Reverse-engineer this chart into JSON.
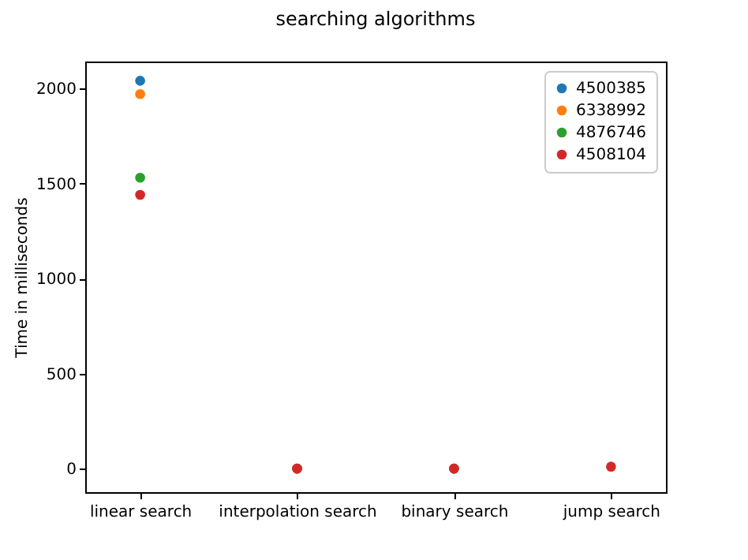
{
  "chart_data": {
    "type": "scatter",
    "title": "searching algorithms",
    "ylabel": "Time in milliseconds",
    "categories": [
      "linear search",
      "interpolation search",
      "binary search",
      "jump search"
    ],
    "series": [
      {
        "name": "4500385",
        "color": "#1f77b4",
        "values": [
          2040,
          0,
          0,
          null
        ]
      },
      {
        "name": "6338992",
        "color": "#ff7f0e",
        "values": [
          1970,
          0,
          0,
          null
        ]
      },
      {
        "name": "4876746",
        "color": "#2ca02c",
        "values": [
          1530,
          0,
          0,
          null
        ]
      },
      {
        "name": "4508104",
        "color": "#d62728",
        "values": [
          1440,
          0,
          0,
          10
        ]
      }
    ],
    "ylim": [
      -124,
      2141
    ],
    "yticks": [
      0,
      500,
      1000,
      1500,
      2000
    ],
    "legend": "top right",
    "marker": "circle",
    "grid": false
  }
}
